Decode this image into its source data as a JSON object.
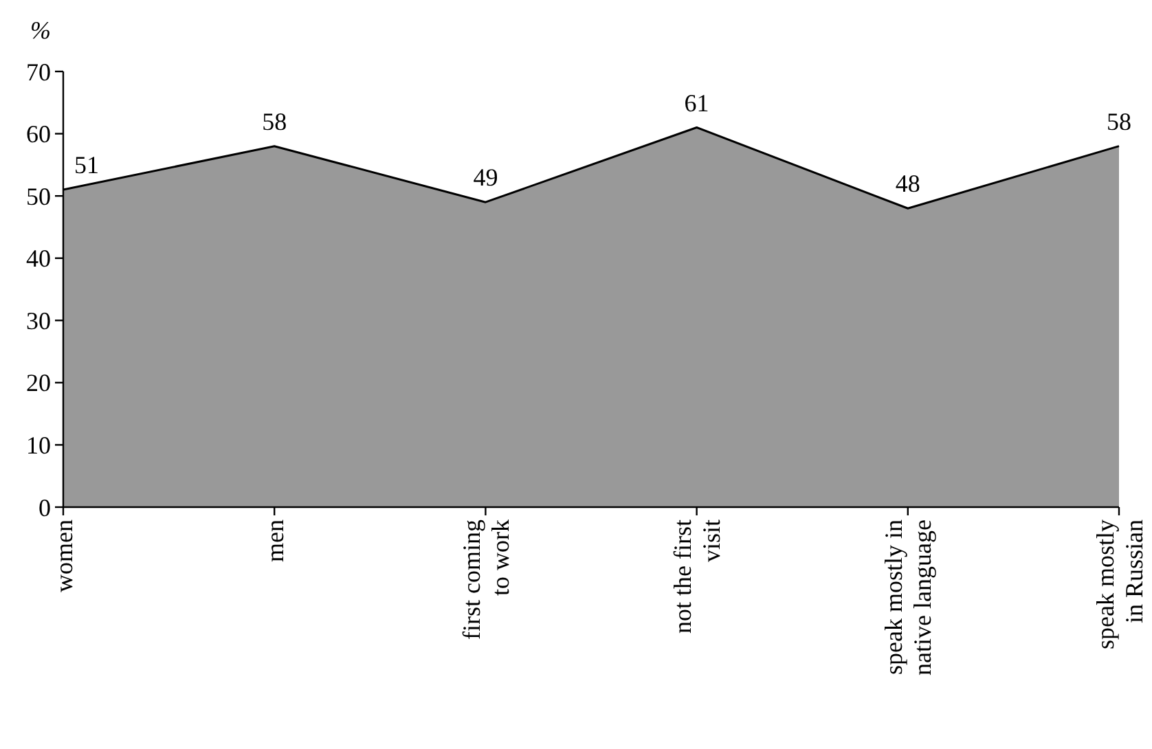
{
  "chart_data": {
    "type": "area",
    "ylabel": "%",
    "categories": [
      "women",
      "men",
      "first coming\nto work",
      "not the first\nvisit",
      "speak mostly in\nnative language",
      "speak mostly\nin Russian"
    ],
    "series": [
      {
        "color": "#999999",
        "values": [
          51,
          58,
          49,
          61,
          48,
          58
        ]
      }
    ],
    "ylim": [
      0,
      70
    ],
    "yticks": [
      0,
      10,
      20,
      30,
      40,
      50,
      60,
      70
    ],
    "data_labels": true
  }
}
